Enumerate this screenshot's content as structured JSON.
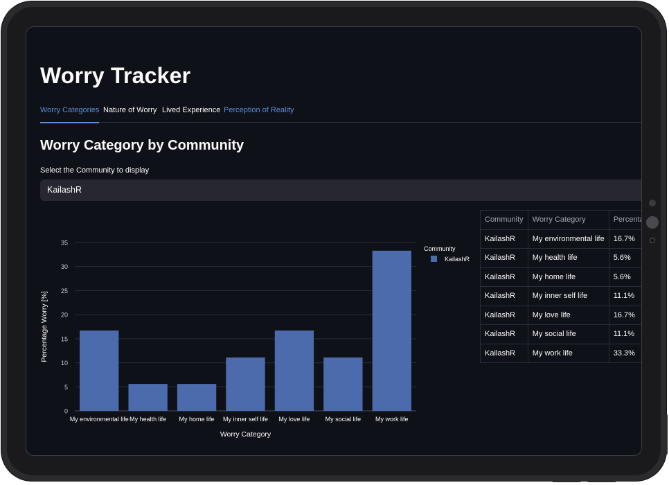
{
  "page": {
    "title": "Worry Tracker"
  },
  "tabs": [
    {
      "label": "Worry Categories",
      "active": true
    },
    {
      "label": "Nature of Worry",
      "active": false
    },
    {
      "label": "Lived Experience",
      "active": false
    },
    {
      "label": "Perception of Reality",
      "active": false
    }
  ],
  "section": {
    "title": "Worry Category by Community",
    "select_label": "Select the Community to display",
    "select_value": "KailashR"
  },
  "colors": {
    "bar": "#4c6bad",
    "accent": "#5b8dd9",
    "background": "#0e1117"
  },
  "chart_data": {
    "type": "bar",
    "categories": [
      "My environmental life",
      "My health life",
      "My home life",
      "My inner self life",
      "My love life",
      "My social life",
      "My work life"
    ],
    "series": [
      {
        "name": "KailashR",
        "values": [
          16.7,
          5.6,
          5.6,
          11.1,
          16.7,
          11.1,
          33.3
        ]
      }
    ],
    "xlabel": "Worry Category",
    "ylabel": "Percentage Worry [%]",
    "ylim": [
      0,
      35
    ],
    "yticks": [
      0,
      5,
      10,
      15,
      20,
      25,
      30,
      35
    ],
    "legend_title": "Community",
    "legend_position": "top-right",
    "grid": true
  },
  "table": {
    "headers": [
      "Community",
      "Worry Category",
      "Percentage"
    ],
    "rows": [
      [
        "KailashR",
        "My environmental life",
        "16.7%"
      ],
      [
        "KailashR",
        "My health life",
        "5.6%"
      ],
      [
        "KailashR",
        "My home life",
        "5.6%"
      ],
      [
        "KailashR",
        "My inner self life",
        "11.1%"
      ],
      [
        "KailashR",
        "My love life",
        "16.7%"
      ],
      [
        "KailashR",
        "My social life",
        "11.1%"
      ],
      [
        "KailashR",
        "My work life",
        "33.3%"
      ]
    ]
  }
}
